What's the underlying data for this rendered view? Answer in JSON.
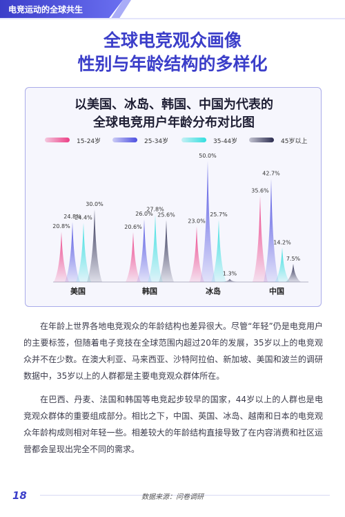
{
  "header": {
    "tab": "电竞运动的全球共生"
  },
  "page_title": [
    "全球电竞观众画像",
    "性别与年龄结构的多样化"
  ],
  "card_title": [
    "以美国、冰岛、韩国、中国为代表的",
    "全球电竞用户年龄分布对比图"
  ],
  "colors": {
    "accent": "#3b3ec9",
    "s1": "#ec3f86",
    "s2": "#4d4fe0",
    "s3": "#33dede",
    "s4": "#2b2c4f"
  },
  "chart_data": {
    "type": "bar",
    "categories": [
      "美国",
      "韩国",
      "冰岛",
      "中国"
    ],
    "series": [
      {
        "name": "15-24岁",
        "values": [
          20.8,
          20.6,
          23.0,
          35.6
        ]
      },
      {
        "name": "25-34岁",
        "values": [
          24.8,
          26.0,
          50.0,
          42.7
        ]
      },
      {
        "name": "35-44岁",
        "values": [
          24.4,
          27.8,
          25.7,
          14.2
        ]
      },
      {
        "name": "45岁以上",
        "values": [
          30.0,
          25.6,
          1.3,
          7.5
        ]
      }
    ],
    "value_labels": [
      [
        "20.8%",
        "24.8%",
        "24.4%",
        "30.0%"
      ],
      [
        "20.6%",
        "26.0%",
        "27.8%",
        "25.6%"
      ],
      [
        "23.0%",
        "50.0%",
        "25.7%",
        "1.3%"
      ],
      [
        "35.6%",
        "42.7%",
        "14.2%",
        "7.5%"
      ]
    ],
    "legend_position": "top",
    "ylim": [
      0,
      50
    ]
  },
  "paragraphs": [
    "在年龄上世界各地电竞观众的年龄结构也差异很大。尽管“年轻”仍是电竞用户的主要标签，但随着电子竞技在全球范围内超过20年的发展，35岁以上的电竞观众并不在少数。在澳大利亚、马来西亚、沙特阿拉伯、新加坡、美国和波兰的调研数据中，35岁以上的人群都是主要电竞观众群体所在。",
    "在巴西、丹麦、法国和韩国等电竞起步较早的国家，44岁以上的人群也是电竞观众群体的重要组成部分。相比之下，中国、英国、冰岛、越南和日本的电竞观众年龄构成则相对年轻一些。相差较大的年龄结构直接导致了在内容消费和社区运营都会呈现出完全不同的需求。"
  ],
  "footer": {
    "page_number": "18",
    "source": "数据来源：问卷调研"
  }
}
